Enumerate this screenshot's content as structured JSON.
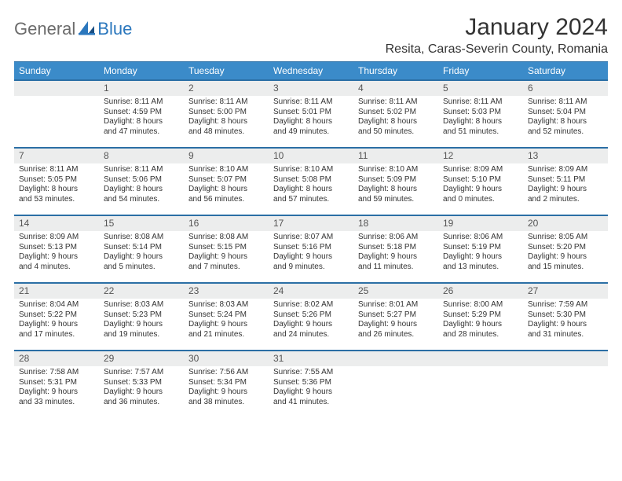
{
  "brand": {
    "general": "General",
    "blue": "Blue"
  },
  "title": "January 2024",
  "location": "Resita, Caras-Severin County, Romania",
  "colors": {
    "header_bg": "#3b8bc9",
    "header_border": "#2b6fa5",
    "daynum_bg": "#eceded",
    "text": "#333333",
    "logo_gray": "#6b6b6b",
    "logo_blue": "#2b77bd",
    "background": "#ffffff"
  },
  "typography": {
    "title_fontsize": 30,
    "location_fontsize": 16,
    "dow_fontsize": 12,
    "daynum_fontsize": 12,
    "cell_fontsize": 10
  },
  "days_of_week": [
    "Sunday",
    "Monday",
    "Tuesday",
    "Wednesday",
    "Thursday",
    "Friday",
    "Saturday"
  ],
  "weeks": [
    [
      {
        "n": "",
        "lines": [
          "",
          "",
          "",
          ""
        ]
      },
      {
        "n": "1",
        "lines": [
          "Sunrise: 8:11 AM",
          "Sunset: 4:59 PM",
          "Daylight: 8 hours",
          "and 47 minutes."
        ]
      },
      {
        "n": "2",
        "lines": [
          "Sunrise: 8:11 AM",
          "Sunset: 5:00 PM",
          "Daylight: 8 hours",
          "and 48 minutes."
        ]
      },
      {
        "n": "3",
        "lines": [
          "Sunrise: 8:11 AM",
          "Sunset: 5:01 PM",
          "Daylight: 8 hours",
          "and 49 minutes."
        ]
      },
      {
        "n": "4",
        "lines": [
          "Sunrise: 8:11 AM",
          "Sunset: 5:02 PM",
          "Daylight: 8 hours",
          "and 50 minutes."
        ]
      },
      {
        "n": "5",
        "lines": [
          "Sunrise: 8:11 AM",
          "Sunset: 5:03 PM",
          "Daylight: 8 hours",
          "and 51 minutes."
        ]
      },
      {
        "n": "6",
        "lines": [
          "Sunrise: 8:11 AM",
          "Sunset: 5:04 PM",
          "Daylight: 8 hours",
          "and 52 minutes."
        ]
      }
    ],
    [
      {
        "n": "7",
        "lines": [
          "Sunrise: 8:11 AM",
          "Sunset: 5:05 PM",
          "Daylight: 8 hours",
          "and 53 minutes."
        ]
      },
      {
        "n": "8",
        "lines": [
          "Sunrise: 8:11 AM",
          "Sunset: 5:06 PM",
          "Daylight: 8 hours",
          "and 54 minutes."
        ]
      },
      {
        "n": "9",
        "lines": [
          "Sunrise: 8:10 AM",
          "Sunset: 5:07 PM",
          "Daylight: 8 hours",
          "and 56 minutes."
        ]
      },
      {
        "n": "10",
        "lines": [
          "Sunrise: 8:10 AM",
          "Sunset: 5:08 PM",
          "Daylight: 8 hours",
          "and 57 minutes."
        ]
      },
      {
        "n": "11",
        "lines": [
          "Sunrise: 8:10 AM",
          "Sunset: 5:09 PM",
          "Daylight: 8 hours",
          "and 59 minutes."
        ]
      },
      {
        "n": "12",
        "lines": [
          "Sunrise: 8:09 AM",
          "Sunset: 5:10 PM",
          "Daylight: 9 hours",
          "and 0 minutes."
        ]
      },
      {
        "n": "13",
        "lines": [
          "Sunrise: 8:09 AM",
          "Sunset: 5:11 PM",
          "Daylight: 9 hours",
          "and 2 minutes."
        ]
      }
    ],
    [
      {
        "n": "14",
        "lines": [
          "Sunrise: 8:09 AM",
          "Sunset: 5:13 PM",
          "Daylight: 9 hours",
          "and 4 minutes."
        ]
      },
      {
        "n": "15",
        "lines": [
          "Sunrise: 8:08 AM",
          "Sunset: 5:14 PM",
          "Daylight: 9 hours",
          "and 5 minutes."
        ]
      },
      {
        "n": "16",
        "lines": [
          "Sunrise: 8:08 AM",
          "Sunset: 5:15 PM",
          "Daylight: 9 hours",
          "and 7 minutes."
        ]
      },
      {
        "n": "17",
        "lines": [
          "Sunrise: 8:07 AM",
          "Sunset: 5:16 PM",
          "Daylight: 9 hours",
          "and 9 minutes."
        ]
      },
      {
        "n": "18",
        "lines": [
          "Sunrise: 8:06 AM",
          "Sunset: 5:18 PM",
          "Daylight: 9 hours",
          "and 11 minutes."
        ]
      },
      {
        "n": "19",
        "lines": [
          "Sunrise: 8:06 AM",
          "Sunset: 5:19 PM",
          "Daylight: 9 hours",
          "and 13 minutes."
        ]
      },
      {
        "n": "20",
        "lines": [
          "Sunrise: 8:05 AM",
          "Sunset: 5:20 PM",
          "Daylight: 9 hours",
          "and 15 minutes."
        ]
      }
    ],
    [
      {
        "n": "21",
        "lines": [
          "Sunrise: 8:04 AM",
          "Sunset: 5:22 PM",
          "Daylight: 9 hours",
          "and 17 minutes."
        ]
      },
      {
        "n": "22",
        "lines": [
          "Sunrise: 8:03 AM",
          "Sunset: 5:23 PM",
          "Daylight: 9 hours",
          "and 19 minutes."
        ]
      },
      {
        "n": "23",
        "lines": [
          "Sunrise: 8:03 AM",
          "Sunset: 5:24 PM",
          "Daylight: 9 hours",
          "and 21 minutes."
        ]
      },
      {
        "n": "24",
        "lines": [
          "Sunrise: 8:02 AM",
          "Sunset: 5:26 PM",
          "Daylight: 9 hours",
          "and 24 minutes."
        ]
      },
      {
        "n": "25",
        "lines": [
          "Sunrise: 8:01 AM",
          "Sunset: 5:27 PM",
          "Daylight: 9 hours",
          "and 26 minutes."
        ]
      },
      {
        "n": "26",
        "lines": [
          "Sunrise: 8:00 AM",
          "Sunset: 5:29 PM",
          "Daylight: 9 hours",
          "and 28 minutes."
        ]
      },
      {
        "n": "27",
        "lines": [
          "Sunrise: 7:59 AM",
          "Sunset: 5:30 PM",
          "Daylight: 9 hours",
          "and 31 minutes."
        ]
      }
    ],
    [
      {
        "n": "28",
        "lines": [
          "Sunrise: 7:58 AM",
          "Sunset: 5:31 PM",
          "Daylight: 9 hours",
          "and 33 minutes."
        ]
      },
      {
        "n": "29",
        "lines": [
          "Sunrise: 7:57 AM",
          "Sunset: 5:33 PM",
          "Daylight: 9 hours",
          "and 36 minutes."
        ]
      },
      {
        "n": "30",
        "lines": [
          "Sunrise: 7:56 AM",
          "Sunset: 5:34 PM",
          "Daylight: 9 hours",
          "and 38 minutes."
        ]
      },
      {
        "n": "31",
        "lines": [
          "Sunrise: 7:55 AM",
          "Sunset: 5:36 PM",
          "Daylight: 9 hours",
          "and 41 minutes."
        ]
      },
      {
        "n": "",
        "lines": [
          "",
          "",
          "",
          ""
        ]
      },
      {
        "n": "",
        "lines": [
          "",
          "",
          "",
          ""
        ]
      },
      {
        "n": "",
        "lines": [
          "",
          "",
          "",
          ""
        ]
      }
    ]
  ]
}
